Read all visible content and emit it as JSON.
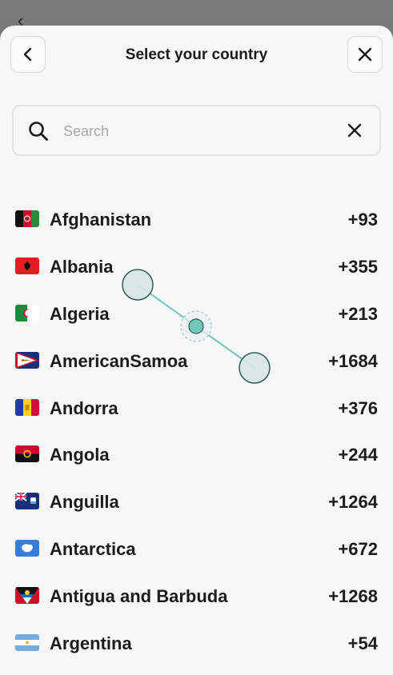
{
  "header": {
    "title": "Select your country",
    "back_icon": "chevron-left-icon",
    "close_icon": "close-icon"
  },
  "search": {
    "placeholder": "Search",
    "value": "",
    "search_icon": "search-icon",
    "clear_icon": "clear-icon"
  },
  "countries": [
    {
      "name": "Afghanistan",
      "code": "+93",
      "flag": "afghanistan-flag-icon"
    },
    {
      "name": "Albania",
      "code": "+355",
      "flag": "albania-flag-icon"
    },
    {
      "name": "Algeria",
      "code": "+213",
      "flag": "algeria-flag-icon"
    },
    {
      "name": "AmericanSamoa",
      "code": "+1684",
      "flag": "american-samoa-flag-icon"
    },
    {
      "name": "Andorra",
      "code": "+376",
      "flag": "andorra-flag-icon"
    },
    {
      "name": "Angola",
      "code": "+244",
      "flag": "angola-flag-icon"
    },
    {
      "name": "Anguilla",
      "code": "+1264",
      "flag": "anguilla-flag-icon"
    },
    {
      "name": "Antarctica",
      "code": "+672",
      "flag": "antarctica-flag-icon"
    },
    {
      "name": "Antigua and Barbuda",
      "code": "+1268",
      "flag": "antigua-and-barbuda-flag-icon"
    },
    {
      "name": "Argentina",
      "code": "+54",
      "flag": "argentina-flag-icon"
    }
  ],
  "colors": {
    "sheet": "#f7f7f7",
    "text": "#1c1c1c",
    "gesture": "#6fc8b8"
  }
}
